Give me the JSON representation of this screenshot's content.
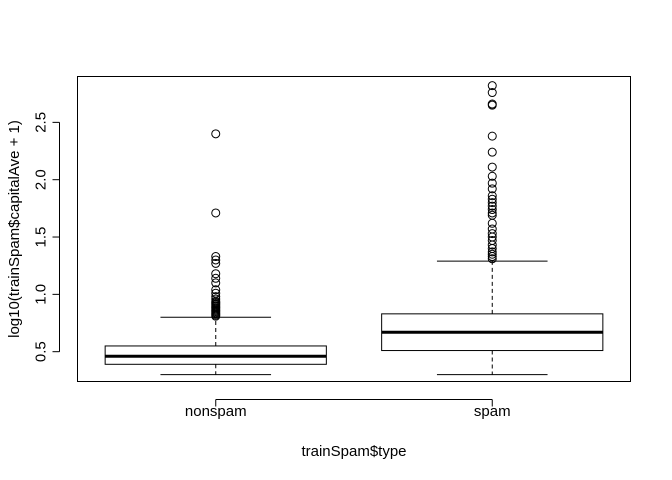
{
  "chart_data": {
    "type": "boxplot",
    "title": "",
    "xlabel": "trainSpam$type",
    "ylabel": "log10(trainSpam$capitalAve + 1)",
    "ylim": [
      0.24,
      2.9
    ],
    "yticks": [
      "0.5",
      "1.0",
      "1.5",
      "2.0",
      "2.5"
    ],
    "grid": false,
    "categories": [
      "nonspam",
      "spam"
    ],
    "boxes": [
      {
        "category": "nonspam",
        "whisker_low": 0.3,
        "q1": 0.39,
        "median": 0.46,
        "q3": 0.55,
        "whisker_high": 0.8,
        "outliers": [
          0.81,
          0.82,
          0.83,
          0.84,
          0.85,
          0.86,
          0.87,
          0.88,
          0.89,
          0.9,
          0.91,
          0.92,
          0.93,
          0.94,
          0.96,
          0.98,
          1.01,
          1.04,
          1.1,
          1.14,
          1.18,
          1.27,
          1.3,
          1.33,
          1.71,
          2.4
        ]
      },
      {
        "category": "spam",
        "whisker_low": 0.3,
        "q1": 0.51,
        "median": 0.67,
        "q3": 0.83,
        "whisker_high": 1.29,
        "outliers": [
          1.31,
          1.33,
          1.35,
          1.37,
          1.4,
          1.43,
          1.47,
          1.5,
          1.53,
          1.57,
          1.62,
          1.69,
          1.71,
          1.74,
          1.77,
          1.8,
          1.83,
          1.86,
          1.92,
          1.97,
          2.03,
          2.11,
          2.24,
          2.38,
          2.65,
          2.66,
          2.76,
          2.82
        ]
      }
    ]
  }
}
